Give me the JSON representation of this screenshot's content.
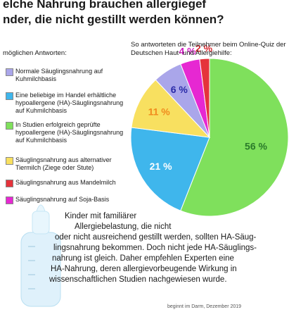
{
  "chart_data": {
    "type": "pie",
    "title": [
      "elche Nahrung brauchen allergiegef",
      "nder, die nicht gestillt werden können?"
    ],
    "subtitle": "So antworteten die Teilnehmer beim Online-Quiz der Deutschen Haut- und Allergiehilfe:",
    "legend_title": "möglichen Antworten:",
    "categories": [
      "In Studien erfolgreich geprüfte hypoallergene (HA)-Säuglingsnahrung auf Kuhmilchbasis",
      "Eine beliebige im Handel erhältliche hypoallergene (HA)-Säuglingsnahrung auf Kuhmilchbasis",
      "Säuglingsnahrung aus alternativer Tiermilch (Ziege oder Stute)",
      "Normale Säuglingsnahrung auf Kuhmilchbasis",
      "Säuglingsnahrung auf Soja-Basis",
      "Säuglingsnahrung aus Mandelmilch"
    ],
    "values": [
      56,
      21,
      11,
      6,
      4,
      2
    ],
    "value_labels": [
      "56 %",
      "21 %",
      "11 %",
      "6 %",
      "4 %",
      "2 %"
    ],
    "colors": [
      "#7fe05c",
      "#3fb6ec",
      "#f8e060",
      "#aaa6ea",
      "#e628d2",
      "#e5333b"
    ],
    "legend_order": [
      3,
      1,
      0,
      2,
      5,
      4
    ],
    "note": [
      "Kinder mit familiärer",
      "Allergiebelastung, die nicht",
      "oder nicht ausreichend gestillt werden, sollten HA-Säug-",
      "lingsnahrung bekommen. Doch nicht jede HA-Säuglings-",
      "nahrung ist gleich. Daher empfehlen Experten eine",
      "HA-Nahrung, deren allergievorbeugende Wirkung in",
      "wissenschaftlichen Studien nachgewiesen wurde."
    ],
    "footer": "beginnt im Darm, Dezember 2019"
  }
}
